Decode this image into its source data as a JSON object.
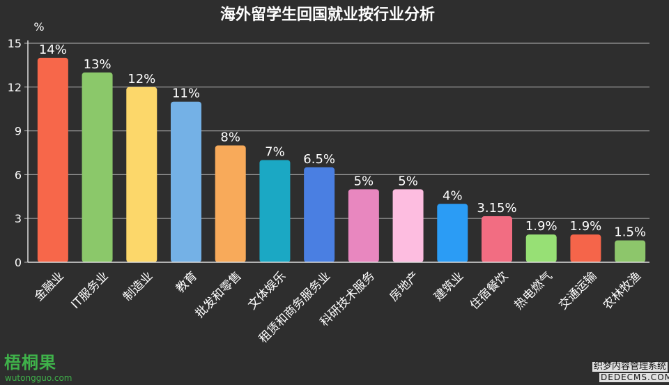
{
  "watermarks": {
    "logo": "梧桐果",
    "logo_url": "wutongguo.com",
    "site_name": "织梦内容管理系统",
    "site_url": "DEDECMS.COM"
  },
  "chart_data": {
    "type": "bar",
    "title": "海外留学生回国就业按行业分析",
    "ylabel": "%",
    "xlabel": "",
    "ylim": [
      0,
      15
    ],
    "yticks": [
      "0",
      "3",
      "6",
      "9",
      "12",
      "15"
    ],
    "grid": true,
    "legend": "none",
    "categories": [
      "金融业",
      "IT服务业",
      "制造业",
      "教育",
      "批发和零售",
      "文体娱乐",
      "租赁和商务服务业",
      "科研技术服务",
      "房地产",
      "建筑业",
      "住宿餐饮",
      "热电燃气",
      "交通运输",
      "农林牧渔"
    ],
    "values": [
      14,
      13,
      12,
      11,
      8,
      7,
      6.5,
      5,
      5,
      4,
      3.15,
      1.9,
      1.9,
      1.5
    ],
    "value_labels": [
      "14%",
      "13%",
      "12%",
      "11%",
      "8%",
      "7%",
      "6.5%",
      "5%",
      "5%",
      "4%",
      "3.15%",
      "1.9%",
      "1.9%",
      "1.5%"
    ],
    "colors": [
      "#f7674a",
      "#8bc86a",
      "#fcd76a",
      "#74b1e6",
      "#f8aa5a",
      "#1ba8c4",
      "#4a7fe2",
      "#e887bf",
      "#fdbde0",
      "#2b9cf5",
      "#f26d82",
      "#97e075",
      "#f5654a",
      "#8dc66b"
    ]
  }
}
